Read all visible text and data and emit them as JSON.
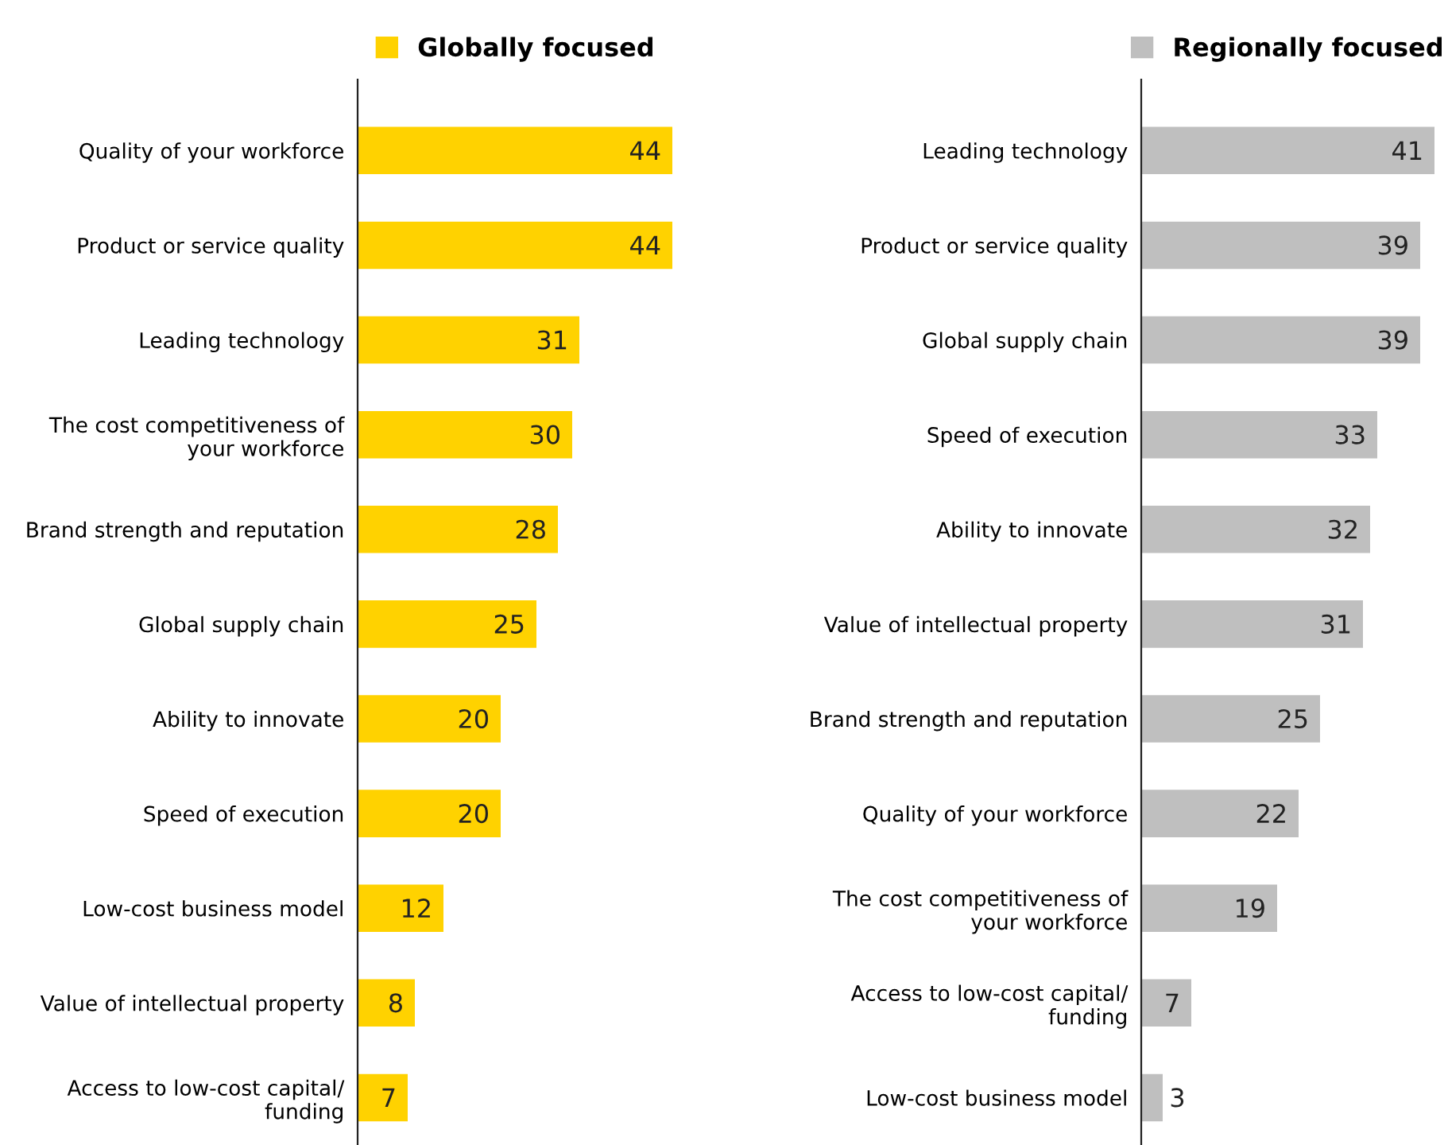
{
  "chart_data": [
    {
      "type": "bar",
      "orientation": "horizontal",
      "categories": [
        "Quality of your workforce",
        "Product or service quality",
        "Leading technology",
        "The cost competitiveness of\nyour workforce",
        "Brand strength and reputation",
        "Global supply chain",
        "Ability to innovate",
        "Speed of execution",
        "Low-cost business model",
        "Value of intellectual property",
        "Access to low-cost capital/\nfunding"
      ],
      "series": [
        {
          "name": "Globally focused",
          "color": "#ffd200",
          "values": [
            44,
            44,
            31,
            30,
            28,
            25,
            20,
            20,
            12,
            8,
            7
          ]
        }
      ],
      "xlim": [
        0,
        44
      ],
      "data_labels": true,
      "legend": "top right",
      "grid": false
    },
    {
      "type": "bar",
      "orientation": "horizontal",
      "categories": [
        "Leading technology",
        "Product or service quality",
        "Global supply chain",
        "Speed of execution",
        "Ability to innovate",
        "Value of intellectual property",
        "Brand strength and reputation",
        "Quality of your workforce",
        "The cost competitiveness of\nyour workforce",
        "Access to low-cost capital/\nfunding",
        "Low-cost business model"
      ],
      "series": [
        {
          "name": "Regionally focused",
          "color": "#bfbfbf",
          "values": [
            41,
            39,
            39,
            33,
            32,
            31,
            25,
            22,
            19,
            7,
            3
          ]
        }
      ],
      "xlim": [
        0,
        41
      ],
      "data_labels": true,
      "legend": "top",
      "grid": false
    }
  ]
}
